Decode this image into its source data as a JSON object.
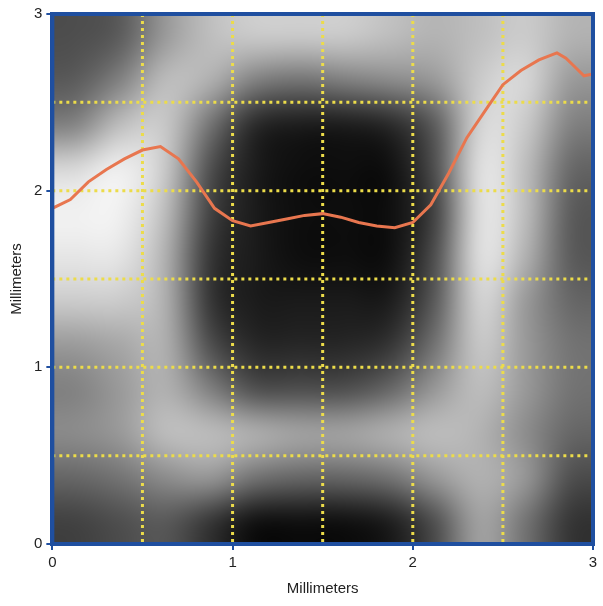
{
  "chart_data": {
    "type": "heatmap",
    "x_label": "Millimeters",
    "y_label": "Millimeters",
    "xlim": [
      0,
      3
    ],
    "ylim": [
      0,
      3
    ],
    "xticks": [
      0,
      1,
      2,
      3
    ],
    "yticks": [
      0,
      1,
      2,
      3
    ],
    "grid": true,
    "clim": [
      0,
      1
    ],
    "cells": [
      [
        0.3,
        0.35,
        0.6,
        0.75,
        0.8,
        0.8,
        0.8,
        0.75,
        0.7,
        0.75,
        0.8,
        0.7
      ],
      [
        0.35,
        0.5,
        0.75,
        0.7,
        0.5,
        0.45,
        0.5,
        0.55,
        0.6,
        0.8,
        0.85,
        0.6
      ],
      [
        0.5,
        0.75,
        0.8,
        0.45,
        0.15,
        0.1,
        0.1,
        0.15,
        0.35,
        0.85,
        0.8,
        0.5
      ],
      [
        0.85,
        0.95,
        0.8,
        0.3,
        0.1,
        0.05,
        0.05,
        0.05,
        0.3,
        0.9,
        0.75,
        0.4
      ],
      [
        0.95,
        0.95,
        0.75,
        0.25,
        0.1,
        0.05,
        0.05,
        0.05,
        0.25,
        0.9,
        0.75,
        0.35
      ],
      [
        0.9,
        0.9,
        0.7,
        0.2,
        0.1,
        0.05,
        0.05,
        0.05,
        0.3,
        0.9,
        0.7,
        0.35
      ],
      [
        0.8,
        0.8,
        0.7,
        0.2,
        0.1,
        0.1,
        0.1,
        0.1,
        0.35,
        0.85,
        0.6,
        0.4
      ],
      [
        0.6,
        0.65,
        0.7,
        0.3,
        0.15,
        0.15,
        0.15,
        0.2,
        0.45,
        0.8,
        0.6,
        0.45
      ],
      [
        0.5,
        0.6,
        0.7,
        0.5,
        0.3,
        0.3,
        0.3,
        0.4,
        0.6,
        0.75,
        0.6,
        0.45
      ],
      [
        0.55,
        0.6,
        0.75,
        0.75,
        0.7,
        0.65,
        0.65,
        0.7,
        0.75,
        0.7,
        0.55,
        0.4
      ],
      [
        0.4,
        0.45,
        0.55,
        0.6,
        0.45,
        0.4,
        0.4,
        0.45,
        0.6,
        0.7,
        0.6,
        0.3
      ],
      [
        0.25,
        0.3,
        0.35,
        0.2,
        0.05,
        0.05,
        0.05,
        0.1,
        0.3,
        0.65,
        0.45,
        0.2
      ]
    ],
    "series": [
      {
        "type": "line",
        "color": "#e8764f",
        "x": [
          0,
          0.1,
          0.2,
          0.3,
          0.4,
          0.5,
          0.6,
          0.7,
          0.8,
          0.9,
          1.0,
          1.1,
          1.2,
          1.3,
          1.4,
          1.5,
          1.6,
          1.7,
          1.8,
          1.9,
          2.0,
          2.1,
          2.2,
          2.3,
          2.4,
          2.5,
          2.6,
          2.7,
          2.8,
          2.85,
          2.9,
          2.95,
          3.0
        ],
        "values": [
          1.9,
          1.95,
          2.05,
          2.12,
          2.18,
          2.23,
          2.25,
          2.18,
          2.05,
          1.9,
          1.83,
          1.8,
          1.82,
          1.84,
          1.86,
          1.87,
          1.85,
          1.82,
          1.8,
          1.79,
          1.82,
          1.92,
          2.1,
          2.3,
          2.45,
          2.6,
          2.68,
          2.74,
          2.78,
          2.75,
          2.7,
          2.65,
          2.66
        ]
      }
    ]
  }
}
